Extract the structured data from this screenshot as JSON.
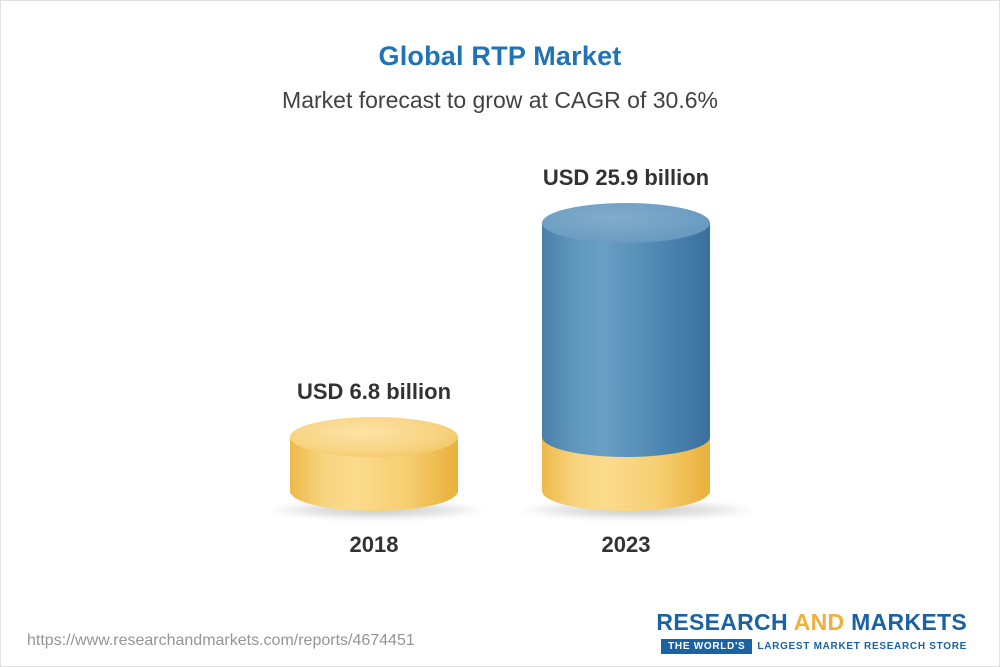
{
  "chart_data": {
    "type": "bar",
    "title": "Global RTP Market",
    "subtitle": "Market forecast to grow at CAGR of 30.6%",
    "cagr_percent": 30.6,
    "unit": "USD billion",
    "categories": [
      "2018",
      "2023"
    ],
    "values": [
      6.8,
      25.9
    ],
    "value_labels": [
      "USD 6.8 billion",
      "USD 25.9 billion"
    ],
    "ylim": [
      0,
      26
    ],
    "legend": "none",
    "grid": false,
    "colors": {
      "bar_gold": "#f6cd6e",
      "bar_blue": "#4e87b2",
      "title_blue": "#2173b8",
      "label_text": "#333333"
    }
  },
  "footer": {
    "url": "https://www.researchandmarkets.com/reports/4674451",
    "logo": {
      "research": "RESEARCH",
      "and": "AND",
      "markets": "MARKETS",
      "tagline_badge": "THE WORLD'S",
      "tagline_rest": "LARGEST MARKET RESEARCH STORE"
    }
  }
}
